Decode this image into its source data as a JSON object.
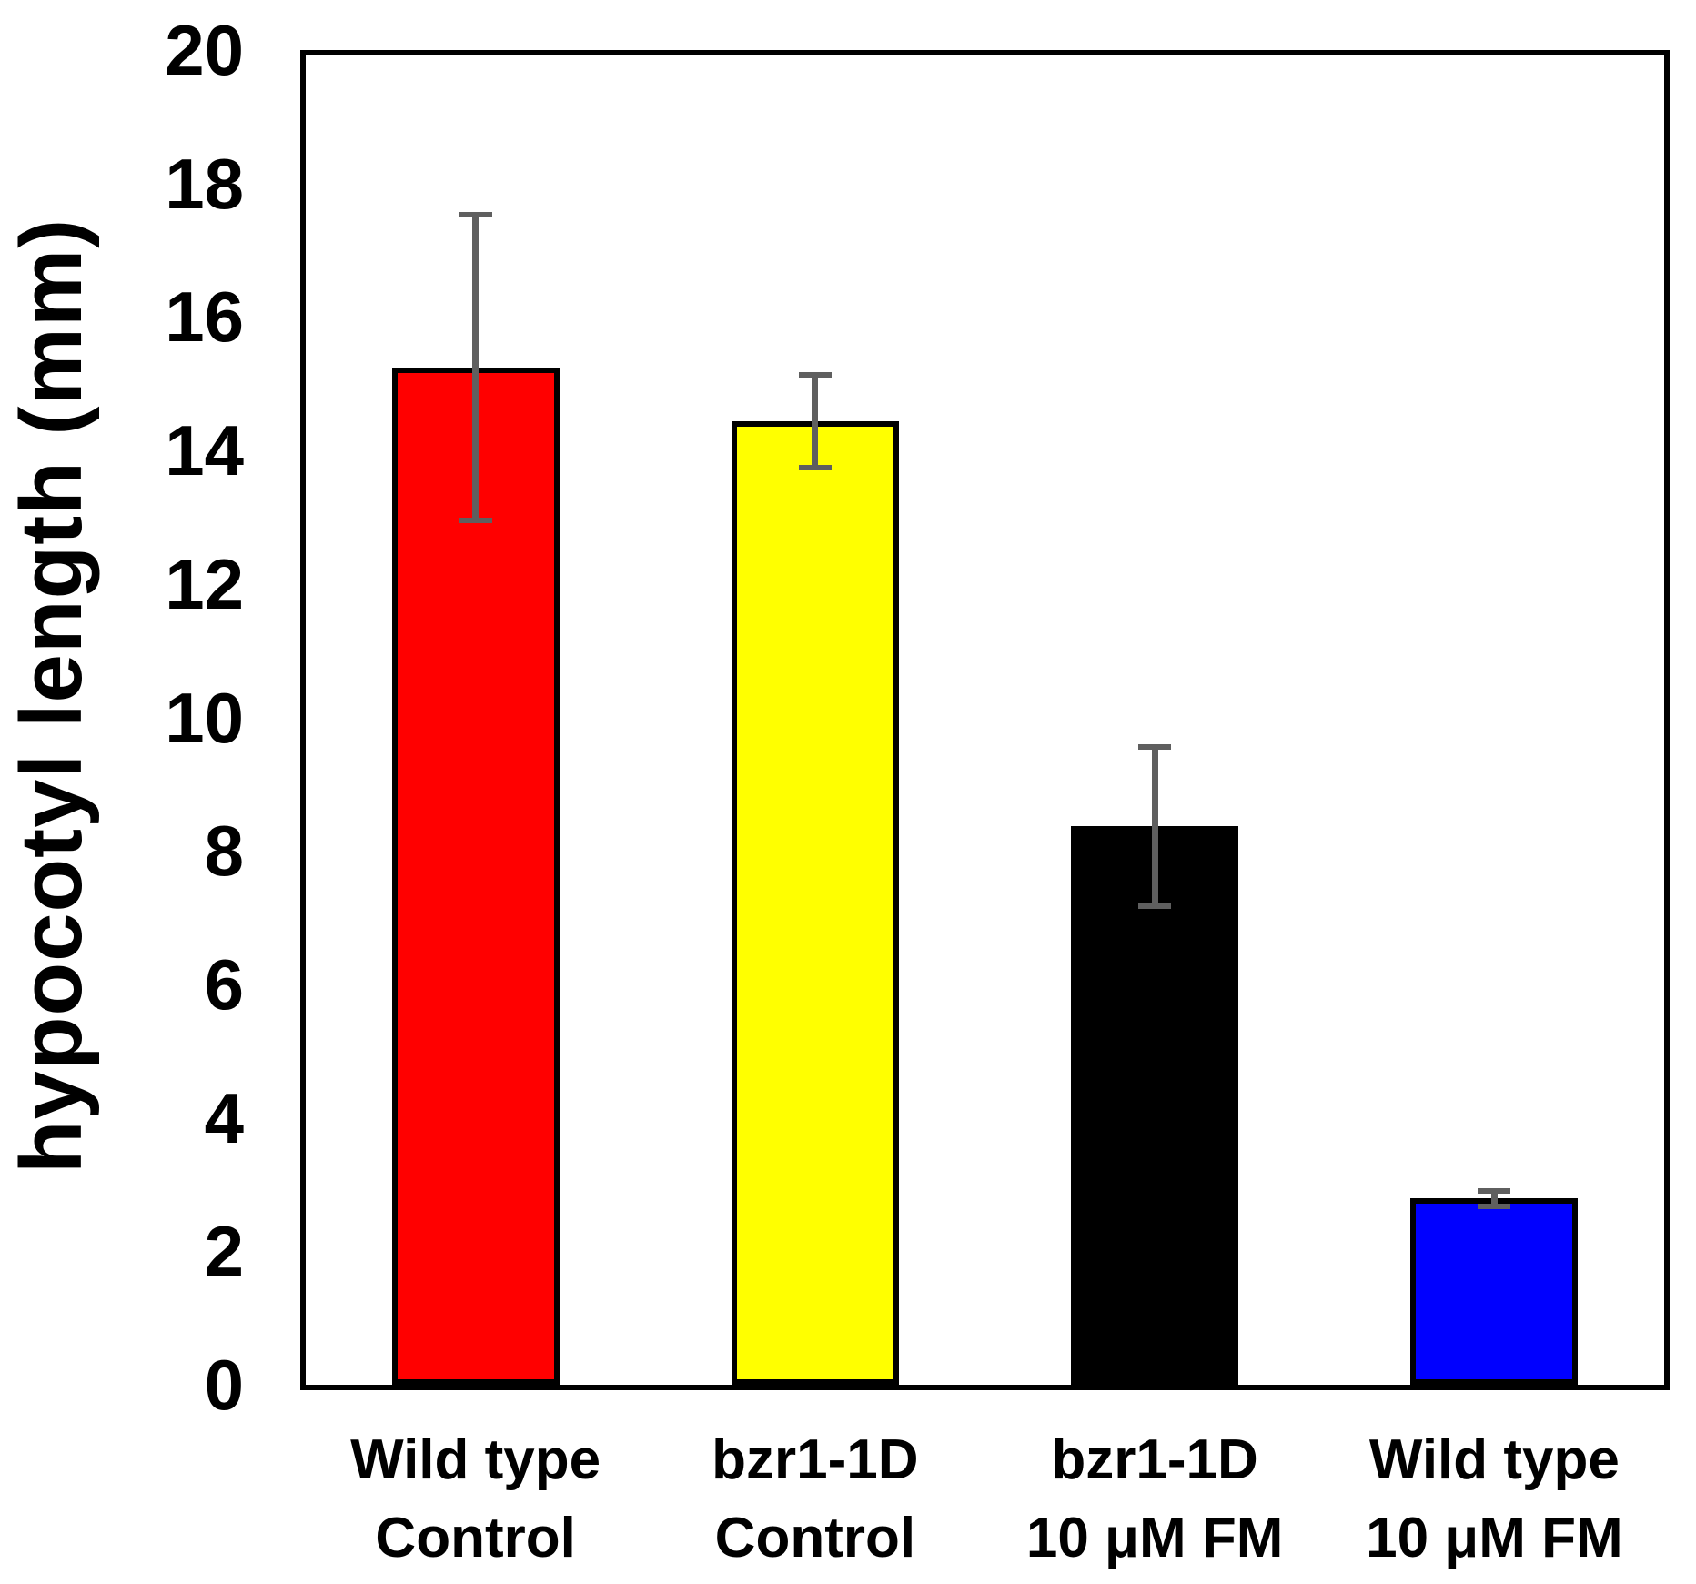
{
  "chart_data": {
    "type": "bar",
    "title": "",
    "xlabel": "",
    "ylabel": "hypocotyl length (mm)",
    "ylim": [
      0,
      20
    ],
    "ytick_step": 2,
    "yticks": [
      0,
      2,
      4,
      6,
      8,
      10,
      12,
      14,
      16,
      18,
      20
    ],
    "grid": false,
    "legend": "none",
    "categories": [
      "Wild type\nControl",
      "bzr1-1D\nControl",
      "bzr1-1D\n10 μM FM",
      "Wild type\n10 μM FM"
    ],
    "series": [
      {
        "name": "hypocotyl length",
        "values": [
          15.3,
          14.5,
          8.4,
          2.8
        ],
        "errors_plus": [
          2.3,
          0.7,
          1.2,
          0.12
        ],
        "errors_minus": [
          2.3,
          0.7,
          1.2,
          0.12
        ],
        "bar_colors": [
          "#ff0000",
          "#ffff00",
          "#000000",
          "#0000ff"
        ]
      }
    ],
    "bar_outline_color": "#000000",
    "error_bar_color": "#5f5f5f",
    "axis_color": "#000000",
    "background_color": "#ffffff"
  }
}
